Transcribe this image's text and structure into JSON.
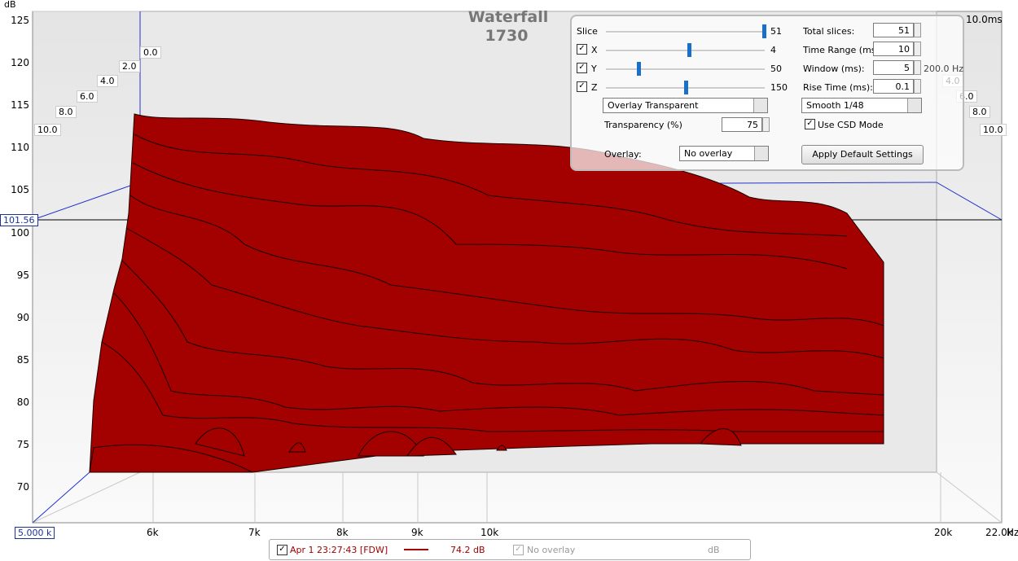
{
  "header": {
    "title": "Waterfall",
    "subtitle": "1730"
  },
  "axes": {
    "y_label": "dB",
    "y_ticks": [
      125,
      120,
      115,
      110,
      105,
      100,
      95,
      90,
      85,
      80,
      75,
      70
    ],
    "x_ticks": [
      "6k",
      "7k",
      "8k",
      "9k",
      "10k",
      "20k",
      "22.0k"
    ],
    "x_unit": "Hz",
    "x_start": "5.000 k",
    "cursor_value": "101.56",
    "time_ticks_left": [
      "0.0",
      "2.0",
      "4.0",
      "6.0",
      "8.0",
      "10.0"
    ],
    "time_ticks_right": [
      "4.0",
      "6.0",
      "8.0",
      "10.0"
    ],
    "time_end": "10.0ms",
    "freq_readout": "200.0 Hz"
  },
  "controls": {
    "sliders": [
      {
        "label": "Slice",
        "value": "51"
      },
      {
        "label": "X",
        "value": "4"
      },
      {
        "label": "Y",
        "value": "50"
      },
      {
        "label": "Z",
        "value": "150"
      }
    ],
    "fields": [
      {
        "label": "Total slices:",
        "value": "51"
      },
      {
        "label": "Time Range (ms):",
        "value": "10"
      },
      {
        "label": "Window (ms):",
        "value": "5"
      },
      {
        "label": "Rise Time (ms):",
        "value": "0.1"
      }
    ],
    "overlay_mode": "Overlay Transparent",
    "smoothing": "Smooth 1/48",
    "transparency_label": "Transparency (%)",
    "transparency": "75",
    "csd_mode": "Use CSD Mode",
    "overlay_label": "Overlay:",
    "overlay": "No overlay",
    "apply_button": "Apply Default Settings"
  },
  "legend": {
    "measurement": "Apr 1 23:27:43 [FDW]",
    "level": "74.2 dB",
    "overlay": "No overlay",
    "unit": "dB"
  }
}
